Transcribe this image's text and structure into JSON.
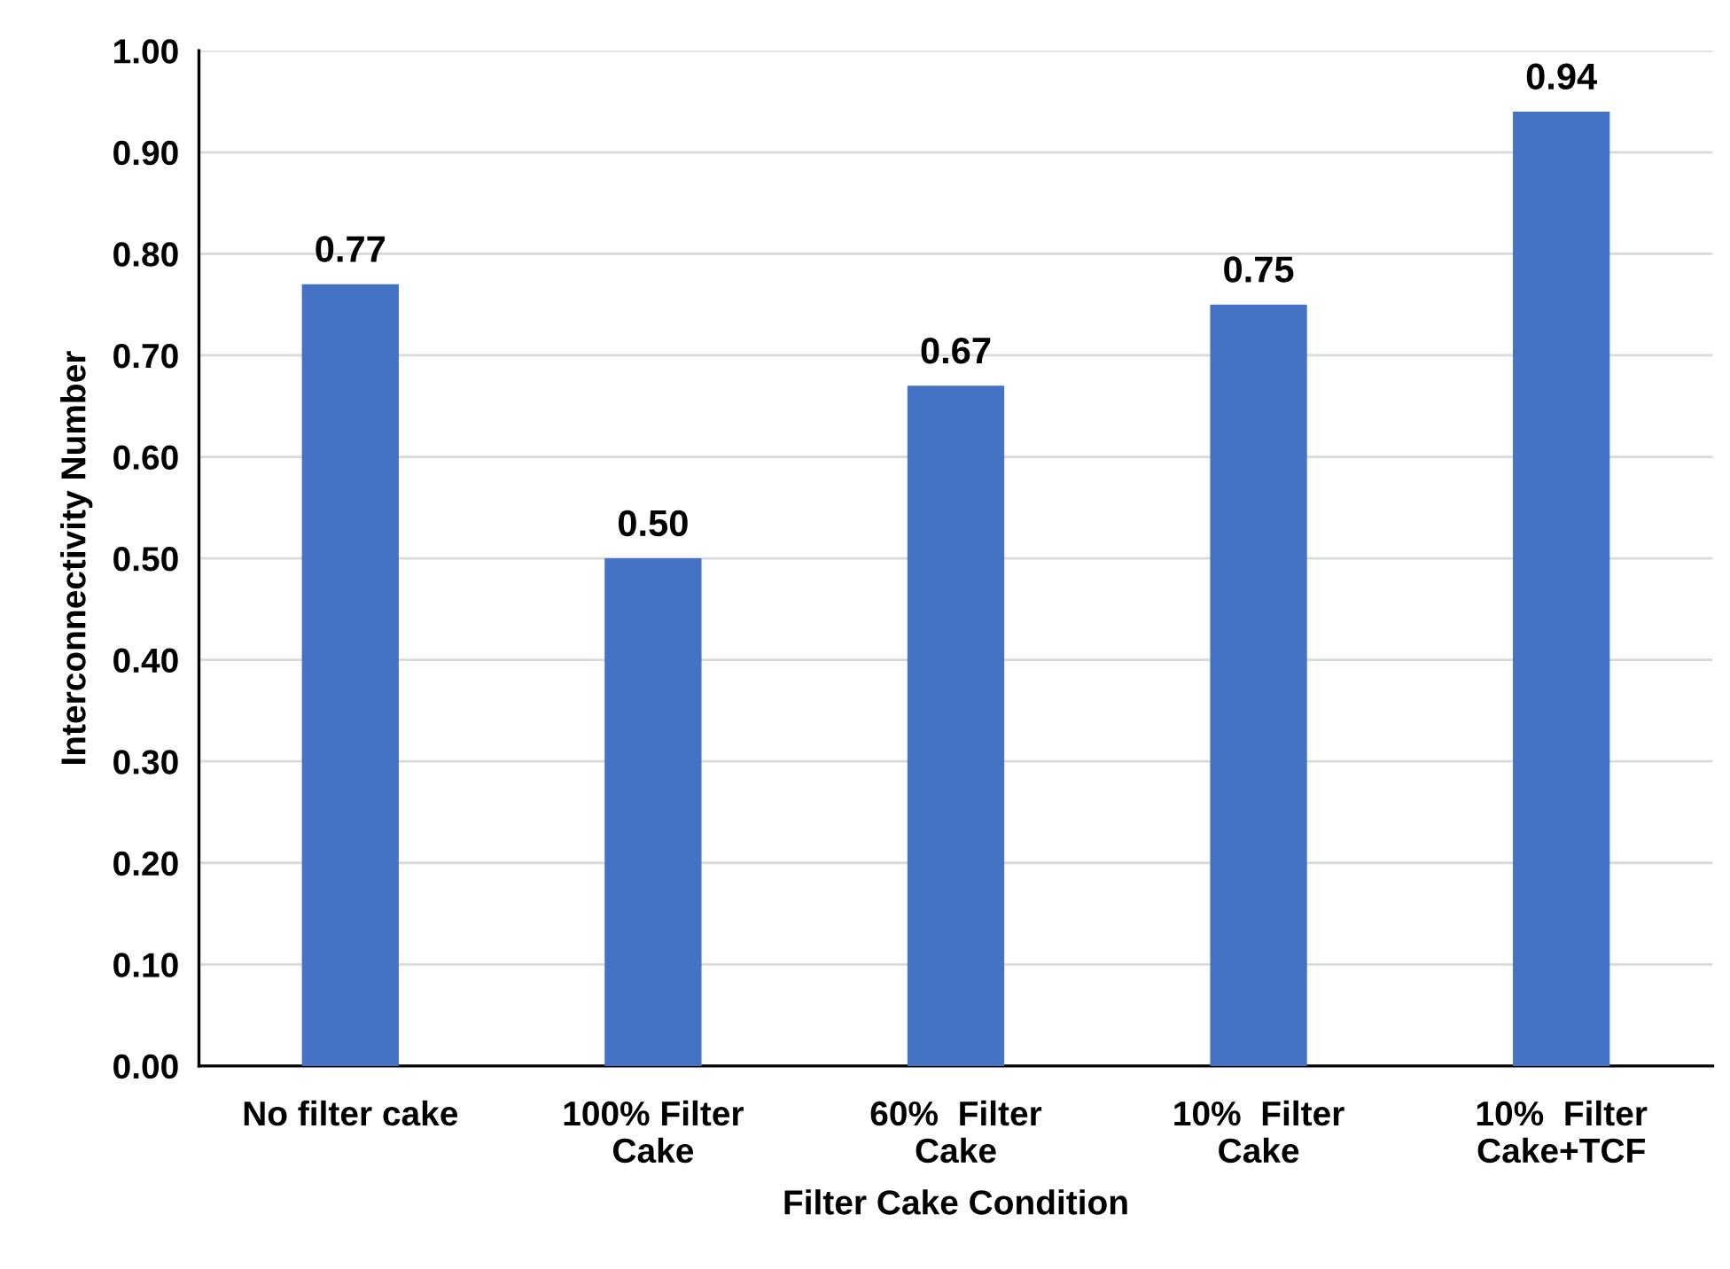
{
  "chart_data": {
    "type": "bar",
    "xlabel": "Filter Cake Condition",
    "ylabel": "Interconnectivity Number",
    "categories": [
      "No filter cake",
      "100% Filter\nCake",
      "60%  Filter\nCake",
      "10%  Filter\nCake",
      "10%  Filter\nCake+TCF"
    ],
    "values": [
      0.77,
      0.5,
      0.67,
      0.75,
      0.94
    ],
    "color": "#4472c4",
    "value_labels": [
      "0.77",
      "0.50",
      "0.67",
      "0.75",
      "0.94"
    ],
    "ylim": [
      0,
      1.0
    ],
    "yticks": [
      {
        "value": 0,
        "label": "0.00"
      },
      {
        "value": 0.1,
        "label": "0.10"
      },
      {
        "value": 0.2,
        "label": "0.20"
      },
      {
        "value": 0.3,
        "label": "0.30"
      },
      {
        "value": 0.4,
        "label": "0.40"
      },
      {
        "value": 0.5,
        "label": "0.50"
      },
      {
        "value": 0.6,
        "label": "0.60"
      },
      {
        "value": 0.7,
        "label": "0.70"
      },
      {
        "value": 0.8,
        "label": "0.80"
      },
      {
        "value": 0.9,
        "label": "0.90"
      },
      {
        "value": 1.0,
        "label": "1.00"
      }
    ],
    "grid": "y"
  }
}
